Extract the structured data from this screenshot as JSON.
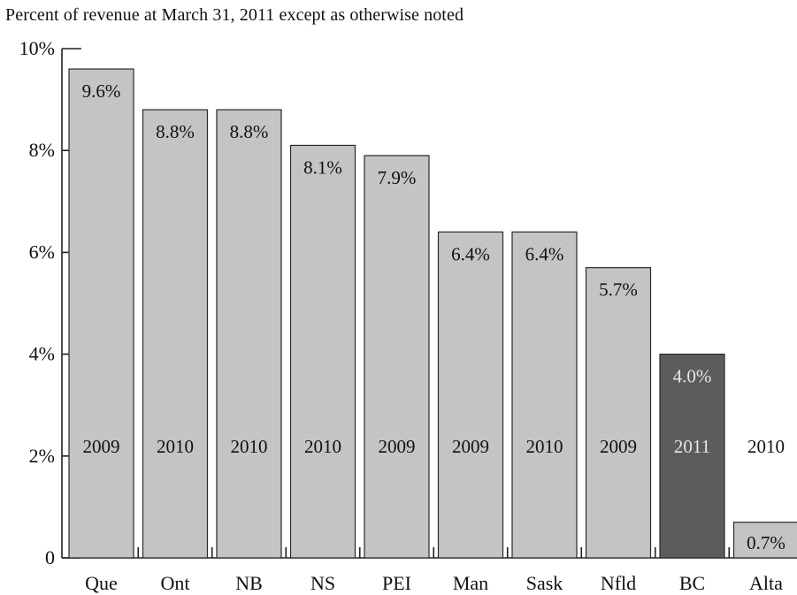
{
  "chart_data": {
    "type": "bar",
    "subtitle": "Percent of revenue at March 31, 2011 except as otherwise noted",
    "categories": [
      "Que",
      "Ont",
      "NB",
      "NS",
      "PEI",
      "Man",
      "Sask",
      "Nfld",
      "BC",
      "Alta"
    ],
    "values": [
      9.6,
      8.8,
      8.8,
      8.1,
      7.9,
      6.4,
      6.4,
      5.7,
      4.0,
      0.7
    ],
    "value_labels": [
      "9.6%",
      "8.8%",
      "8.8%",
      "8.1%",
      "7.9%",
      "6.4%",
      "6.4%",
      "5.7%",
      "4.0%",
      "0.7%"
    ],
    "years": [
      "2009",
      "2010",
      "2010",
      "2010",
      "2009",
      "2009",
      "2010",
      "2009",
      "2011",
      "2010"
    ],
    "highlight": "BC",
    "yticks": [
      0,
      2,
      4,
      6,
      8,
      10
    ],
    "ytick_labels": [
      "0",
      "2%",
      "4%",
      "6%",
      "8%",
      "10%"
    ],
    "ylim": [
      0,
      10
    ],
    "grid": false,
    "colors": {
      "bar": "#c4c4c4",
      "highlight_bar": "#5c5c5c",
      "border": "#2a2a2a",
      "highlight_text": "#e6e6e6",
      "text": "#111111"
    }
  }
}
